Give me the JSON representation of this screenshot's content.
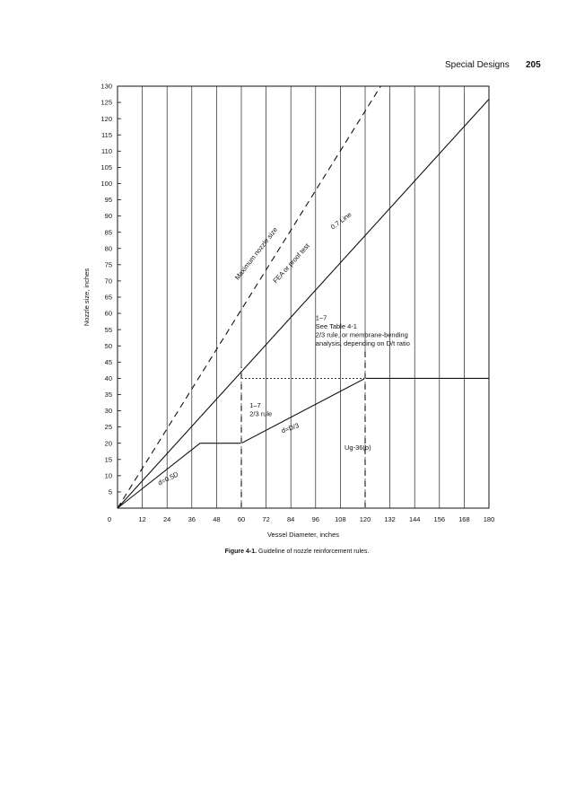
{
  "header": {
    "section": "Special Designs",
    "page": "205"
  },
  "caption": {
    "figure": "Figure 4-1.",
    "text": "Guideline of nozzle reinforcement rules."
  },
  "chart_data": {
    "type": "line",
    "xlabel": "Vessel Diameter, inches",
    "ylabel": "Nozzle size, inches",
    "xlim": [
      0,
      180
    ],
    "ylim": [
      0,
      130
    ],
    "x_ticks": [
      12,
      24,
      36,
      48,
      60,
      72,
      84,
      96,
      108,
      120,
      132,
      144,
      156,
      168,
      180
    ],
    "y_ticks": [
      5,
      10,
      15,
      20,
      25,
      30,
      35,
      40,
      45,
      50,
      55,
      60,
      65,
      70,
      75,
      80,
      85,
      90,
      95,
      100,
      105,
      110,
      115,
      120,
      125,
      130
    ],
    "origin_label": "0",
    "grid": {
      "vertical": true,
      "horizontal": false
    },
    "series": [
      {
        "name": "Maximum nozzle size",
        "style": "dashed",
        "points": [
          [
            0,
            0
          ],
          [
            127.5,
            130
          ]
        ]
      },
      {
        "name": "0.7 Line",
        "style": "solid",
        "points": [
          [
            0,
            0
          ],
          [
            180,
            126
          ]
        ]
      },
      {
        "name": "d=0.5D / d=D/3",
        "style": "solid",
        "points": [
          [
            0,
            0
          ],
          [
            40,
            20
          ],
          [
            60,
            20
          ],
          [
            120,
            40
          ],
          [
            180,
            40
          ]
        ]
      },
      {
        "name": "",
        "style": "dotted",
        "points": [
          [
            60,
            40
          ],
          [
            120,
            40
          ]
        ]
      }
    ],
    "region_dividers": [
      {
        "x": 60,
        "y_from": 0,
        "y_to": 43.5,
        "style": "dashed"
      },
      {
        "x": 120,
        "y_from": 0,
        "y_to": 49,
        "style": "dashed"
      }
    ],
    "annotations": [
      {
        "lines": [
          "Maximum nozzle size"
        ],
        "x": 68,
        "y": 78,
        "rotate": -52
      },
      {
        "lines": [
          "FEA or proof test"
        ],
        "x": 85,
        "y": 75,
        "rotate": -48
      },
      {
        "lines": [
          "0.7 Line"
        ],
        "x": 109,
        "y": 88,
        "rotate": -37
      },
      {
        "lines": [
          "1–7",
          "See Table 4-1",
          "2/3 rule, or membrane-bending",
          "analysis, depending on D/t ratio"
        ],
        "x": 96,
        "y": 58
      },
      {
        "lines": [
          "1–7",
          "2/3 rule"
        ],
        "x": 64,
        "y": 31
      },
      {
        "lines": [
          "d=D/3"
        ],
        "x": 84,
        "y": 24,
        "rotate": -19
      },
      {
        "lines": [
          "d=0.5D"
        ],
        "x": 25,
        "y": 8.5,
        "rotate": -27
      },
      {
        "lines": [
          "Ug-36(b)"
        ],
        "x": 110,
        "y": 18
      }
    ]
  }
}
